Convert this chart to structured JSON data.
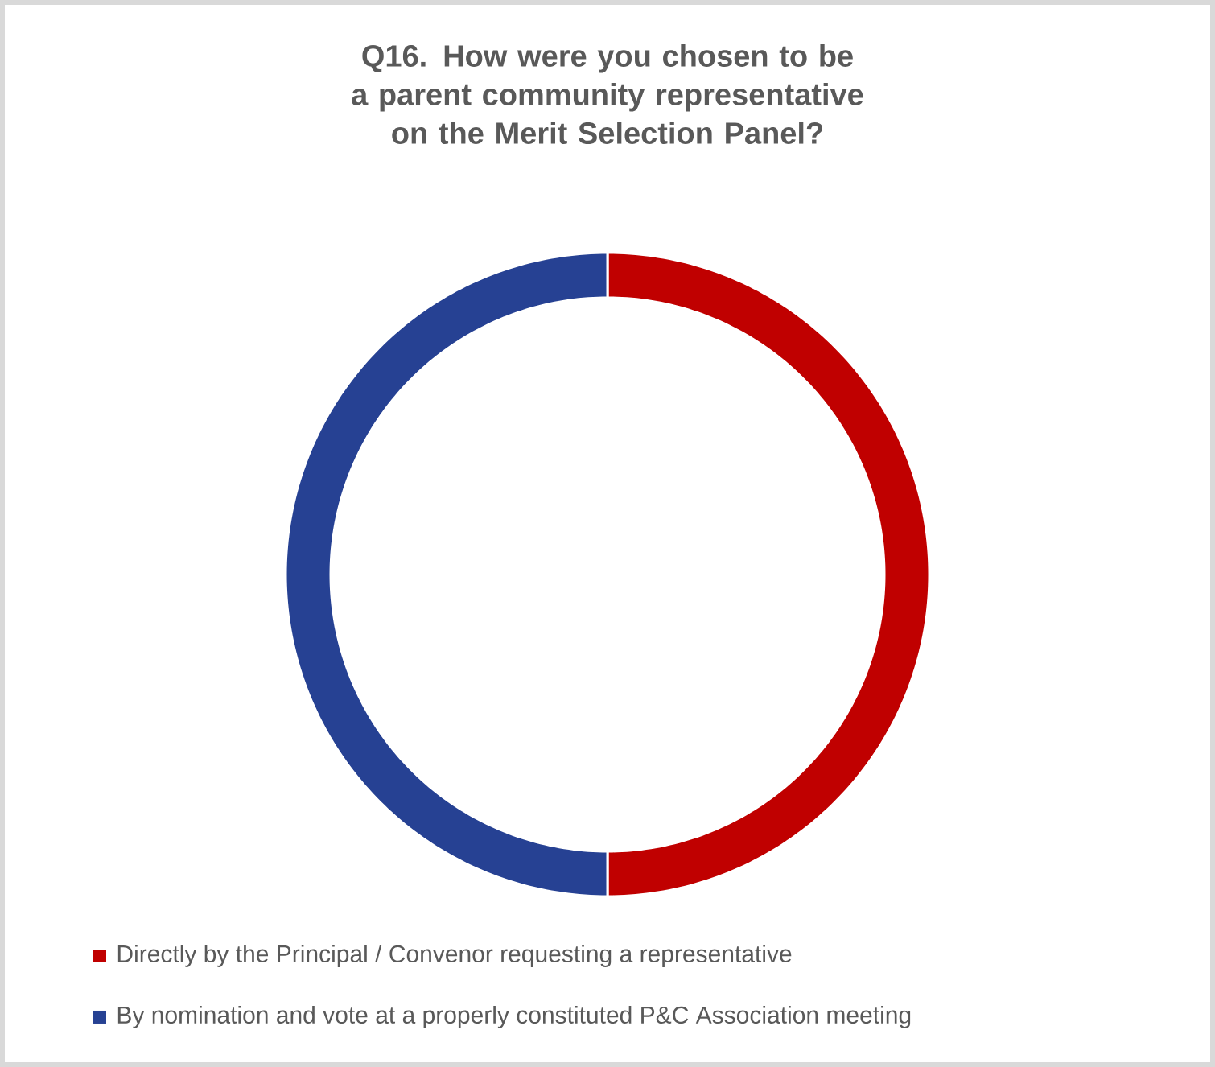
{
  "chart_data": {
    "type": "donut",
    "title": "Q16. How were you chosen to be a parent community representative on the Merit Selection Panel?",
    "categories": [
      "Directly by the Principal / Convenor requesting a representative",
      "By nomination and vote at a properly constituted P&C Association meeting"
    ],
    "values": [
      50,
      50
    ],
    "colors": [
      "#c00000",
      "#264193"
    ],
    "legend": "bottom"
  }
}
